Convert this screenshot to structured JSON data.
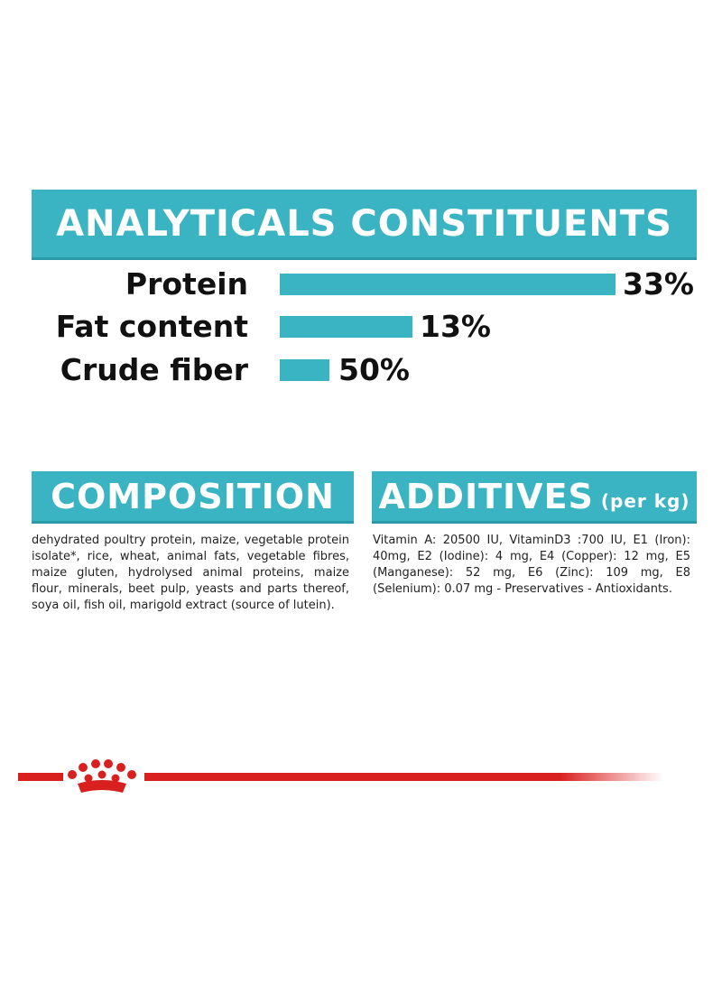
{
  "header": {
    "title": "ANALYTICALS CONSTITUENTS"
  },
  "constituents": [
    {
      "label": "Protein",
      "value": "33%"
    },
    {
      "label": "Fat content",
      "value": "13%"
    },
    {
      "label": "Crude fiber",
      "value": "50%"
    }
  ],
  "composition": {
    "title": "COMPOSITION",
    "text": "dehydrated poultry protein, maize, vegetable protein isolate*, rice, wheat, animal fats, vegetable fibres, maize gluten, hydrolysed animal proteins, maize flour, minerals, beet pulp, yeasts and parts thereof, soya oil, fish oil, marigold extract (source of lutein)."
  },
  "additives": {
    "title": "ADDITIVES",
    "unit": "(per kg)",
    "text": "Vitamin A: 20500 IU, VitaminD3 :700 IU, E1 (Iron): 40mg, E2 (Iodine): 4 mg, E4 (Copper): 12 mg, E5 (Manganese): 52 mg, E6 (Zinc): 109 mg, E8 (Selenium): 0.07 mg - Preservatives - Antioxidants."
  }
}
